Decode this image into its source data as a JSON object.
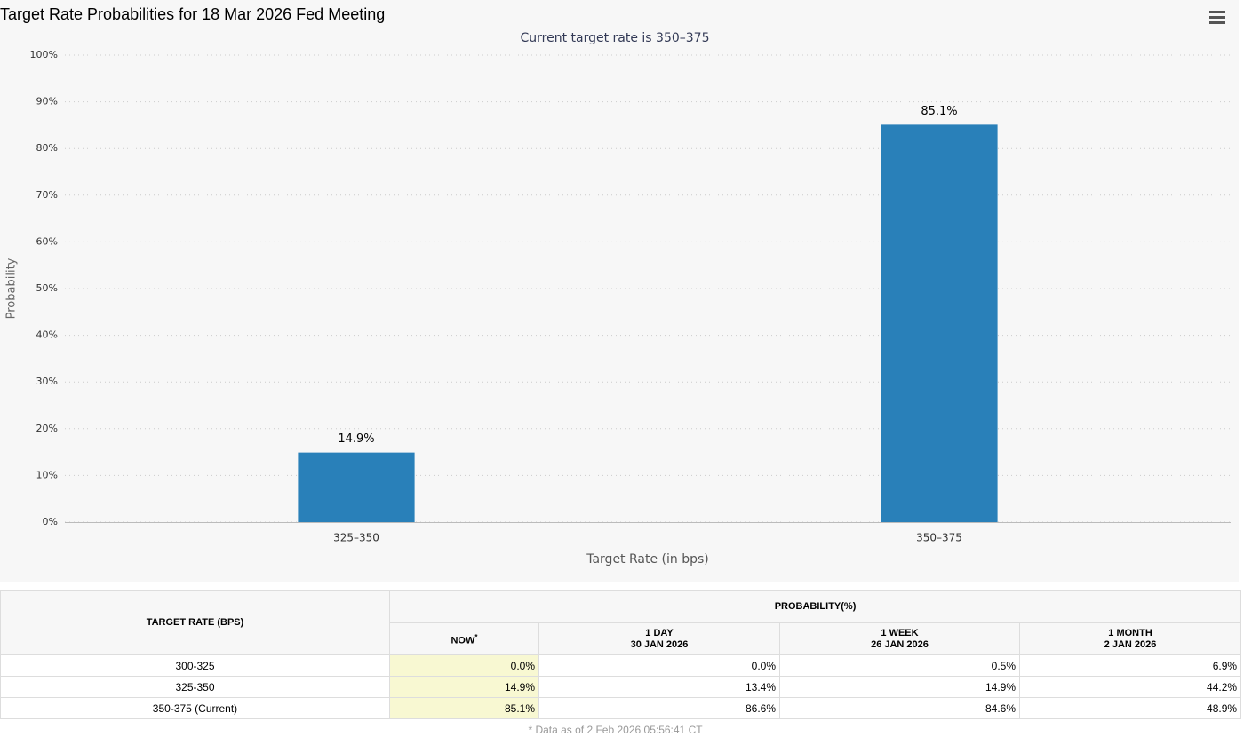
{
  "chart_data": {
    "type": "bar",
    "title": "Target Rate Probabilities for 18 Mar 2026 Fed Meeting",
    "subtitle": "Current target rate is 350–375",
    "x_label": "Target Rate (in bps)",
    "y_label": "Probability",
    "categories": [
      "325–350",
      "350–375"
    ],
    "values": [
      14.9,
      85.1
    ],
    "value_labels": [
      "14.9%",
      "85.1%"
    ],
    "color": "#2980b9",
    "ylim": [
      0,
      100
    ],
    "yticks": [
      {
        "value": 0,
        "label": "0%"
      },
      {
        "value": 10,
        "label": "10%"
      },
      {
        "value": 20,
        "label": "20%"
      },
      {
        "value": 30,
        "label": "30%"
      },
      {
        "value": 40,
        "label": "40%"
      },
      {
        "value": 50,
        "label": "50%"
      },
      {
        "value": 60,
        "label": "60%"
      },
      {
        "value": 70,
        "label": "70%"
      },
      {
        "value": 80,
        "label": "80%"
      },
      {
        "value": 90,
        "label": "90%"
      },
      {
        "value": 100,
        "label": "100%"
      }
    ],
    "grid": true
  },
  "table": {
    "header": "TARGET RATE (BPS)",
    "group": "PROBABILITY(%)",
    "columns": [
      {
        "label": "NOW",
        "note": "*"
      },
      {
        "label": "1 DAY",
        "date": "30 JAN 2026"
      },
      {
        "label": "1 WEEK",
        "date": "26 JAN 2026"
      },
      {
        "label": "1 MONTH",
        "date": "2 JAN 2026"
      }
    ],
    "rows": [
      {
        "rate": "300-325",
        "values": [
          "0.0%",
          "0.0%",
          "0.5%",
          "6.9%"
        ]
      },
      {
        "rate": "325-350",
        "values": [
          "14.9%",
          "13.4%",
          "14.9%",
          "44.2%"
        ]
      },
      {
        "rate": "350-375 (Current)",
        "values": [
          "85.1%",
          "86.6%",
          "84.6%",
          "48.9%"
        ]
      }
    ],
    "footnote": "* Data as of 2 Feb 2026 05:56:41 CT"
  }
}
